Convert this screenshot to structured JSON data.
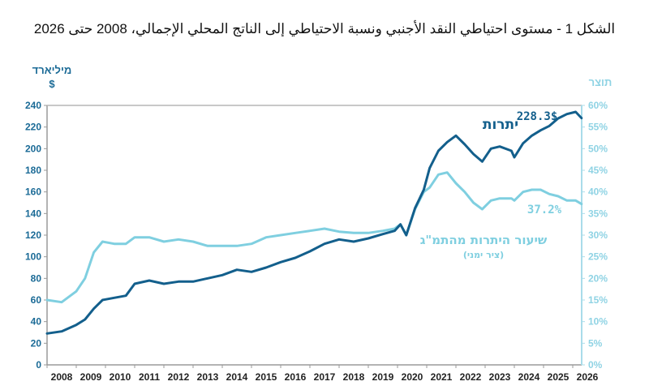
{
  "chart_data": {
    "type": "line",
    "title": "الشكل 1 - مستوى احتياطي النقد الأجنبي ونسبة الاحتياطي إلى الناتج المحلي الإجمالي، 2008 حتى 2026",
    "ylabel_left": [
      "מיליארד",
      "$"
    ],
    "ylabel_right": "תוצר",
    "ylim_left": [
      0,
      240
    ],
    "ylim_right": [
      0,
      60
    ],
    "xlim": [
      2008,
      2027
    ],
    "left_ticks": [
      "0",
      "20",
      "40",
      "60",
      "80",
      "100",
      "120",
      "140",
      "160",
      "180",
      "200",
      "220",
      "240"
    ],
    "right_ticks": [
      "0%",
      "5%",
      "10%",
      "15%",
      "20%",
      "25%",
      "30%",
      "35%",
      "40%",
      "45%",
      "50%",
      "55%",
      "60%"
    ],
    "x_ticks": [
      "2008",
      "2009",
      "2010",
      "2011",
      "2012",
      "2013",
      "2014",
      "2015",
      "2016",
      "2017",
      "2018",
      "2019",
      "2020",
      "2021",
      "2022",
      "2023",
      "2024",
      "2025",
      "2026"
    ],
    "series": [
      {
        "name": "יתרות",
        "axis": "left",
        "color": "#135f8c",
        "end_label": "228.3$",
        "x": [
          2008.0,
          2008.5,
          2009.0,
          2009.3,
          2009.6,
          2009.9,
          2010.3,
          2010.7,
          2011.0,
          2011.5,
          2012.0,
          2012.5,
          2013.0,
          2013.5,
          2014.0,
          2014.5,
          2015.0,
          2015.5,
          2016.0,
          2016.5,
          2017.0,
          2017.5,
          2018.0,
          2018.5,
          2019.0,
          2019.5,
          2019.9,
          2020.1,
          2020.3,
          2020.6,
          2020.9,
          2021.1,
          2021.4,
          2021.7,
          2022.0,
          2022.3,
          2022.6,
          2022.9,
          2023.2,
          2023.5,
          2023.9,
          2024.0,
          2024.3,
          2024.6,
          2024.9,
          2025.2,
          2025.5,
          2025.8,
          2026.1,
          2026.3
        ],
        "values": [
          29,
          31,
          37,
          42,
          52,
          60,
          62,
          64,
          75,
          78,
          75,
          77,
          77,
          80,
          83,
          88,
          86,
          90,
          95,
          99,
          105,
          112,
          116,
          114,
          117,
          121,
          124,
          130,
          120,
          145,
          162,
          182,
          198,
          206,
          212,
          204,
          195,
          188,
          200,
          202,
          198,
          192,
          205,
          212,
          217,
          221,
          228,
          232,
          234,
          228.3
        ]
      },
      {
        "name": "שיעור היתרות מהתמ\"ג",
        "subname": "(ציר ימני)",
        "axis": "right",
        "color": "#7fcfe0",
        "end_label": "37.2%",
        "x": [
          2008.0,
          2008.5,
          2009.0,
          2009.3,
          2009.6,
          2009.9,
          2010.3,
          2010.7,
          2011.0,
          2011.5,
          2012.0,
          2012.5,
          2013.0,
          2013.5,
          2014.0,
          2014.5,
          2015.0,
          2015.5,
          2016.0,
          2016.5,
          2017.0,
          2017.5,
          2018.0,
          2018.5,
          2019.0,
          2019.5,
          2019.9,
          2020.1,
          2020.3,
          2020.6,
          2020.9,
          2021.1,
          2021.4,
          2021.7,
          2022.0,
          2022.3,
          2022.6,
          2022.9,
          2023.2,
          2023.5,
          2023.9,
          2024.0,
          2024.3,
          2024.6,
          2024.9,
          2025.2,
          2025.5,
          2025.8,
          2026.1,
          2026.3
        ],
        "values": [
          15,
          14.5,
          17,
          20,
          26,
          28.5,
          28,
          28,
          29.5,
          29.5,
          28.5,
          29,
          28.5,
          27.5,
          27.5,
          27.5,
          28,
          29.5,
          30,
          30.5,
          31,
          31.5,
          30.8,
          30.5,
          30.5,
          31,
          31.5,
          32.5,
          30,
          36,
          40,
          41,
          44,
          44.5,
          42,
          40,
          37.5,
          36,
          38,
          38.5,
          38.5,
          38,
          40,
          40.5,
          40.5,
          39.5,
          39,
          38,
          38,
          37.2
        ]
      }
    ]
  }
}
